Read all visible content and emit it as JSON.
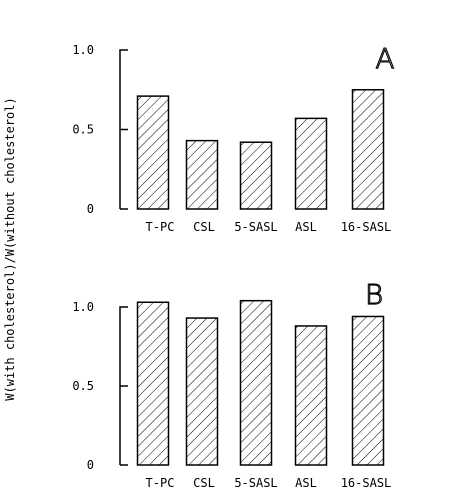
{
  "chart_data": {
    "ylabel": "W(with cholesterol)/W(without cholesterol)",
    "panels": [
      {
        "type": "bar",
        "panel_label": "A",
        "categories": [
          "T-PC",
          "CSL",
          "5-SASL",
          "ASL",
          "16-SASL"
        ],
        "values": [
          0.71,
          0.43,
          0.42,
          0.57,
          0.75
        ],
        "ylim": [
          0,
          1.0
        ],
        "yticks": [
          0,
          0.5,
          1.0
        ],
        "ytick_labels": [
          "0",
          "0.5",
          "1.0"
        ],
        "grid": false
      },
      {
        "type": "bar",
        "panel_label": "B",
        "categories": [
          "T-PC",
          "CSL",
          "5-SASL",
          "ASL",
          "16-SASL"
        ],
        "values": [
          1.03,
          0.93,
          1.04,
          0.88,
          0.94
        ],
        "ylim": [
          0,
          1.0
        ],
        "yticks": [
          0,
          0.5,
          1.0
        ],
        "ytick_labels": [
          "0",
          "0.5",
          "1.0"
        ],
        "grid": false
      }
    ]
  }
}
